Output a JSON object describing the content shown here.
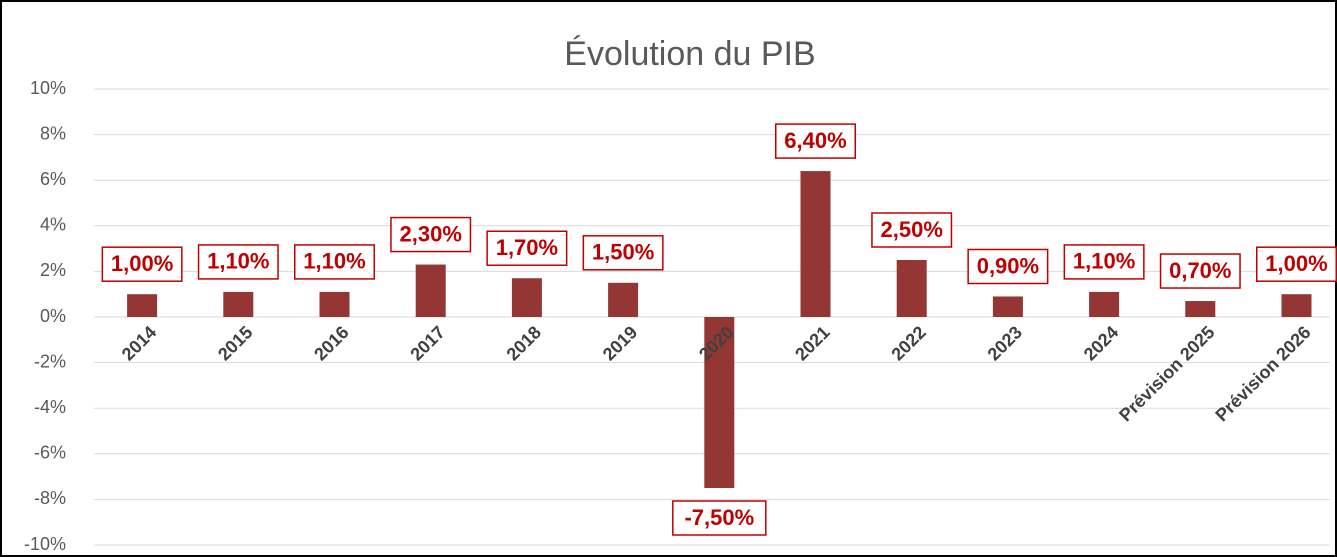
{
  "chart_data": {
    "type": "bar",
    "title": "Évolution du PIB",
    "categories": [
      "2014",
      "2015",
      "2016",
      "2017",
      "2018",
      "2019",
      "2020",
      "2021",
      "2022",
      "2023",
      "2024",
      "Prévision 2025",
      "Prévision 2026"
    ],
    "values": [
      1.0,
      1.1,
      1.1,
      2.3,
      1.7,
      1.5,
      -7.5,
      6.4,
      2.5,
      0.9,
      1.1,
      0.7,
      1.0
    ],
    "value_labels": [
      "1,00%",
      "1,10%",
      "1,10%",
      "2,30%",
      "1,70%",
      "1,50%",
      "-7,50%",
      "6,40%",
      "2,50%",
      "0,90%",
      "1,10%",
      "0,70%",
      "1,00%"
    ],
    "color": "#943634",
    "ylim": [
      -10,
      10
    ],
    "yticks": [
      {
        "value": -10,
        "label": "-10%"
      },
      {
        "value": -8,
        "label": "-8%"
      },
      {
        "value": -6,
        "label": "-6%"
      },
      {
        "value": -4,
        "label": "-4%"
      },
      {
        "value": -2,
        "label": "-2%"
      },
      {
        "value": 0,
        "label": "0%"
      },
      {
        "value": 2,
        "label": "2%"
      },
      {
        "value": 4,
        "label": "4%"
      },
      {
        "value": 6,
        "label": "6%"
      },
      {
        "value": 8,
        "label": "8%"
      },
      {
        "value": 10,
        "label": "10%"
      }
    ],
    "grid": true
  }
}
